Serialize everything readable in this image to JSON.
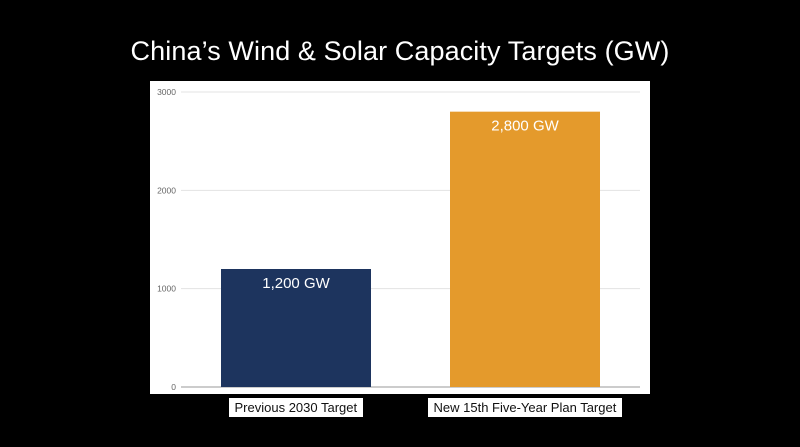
{
  "page": {
    "title": "China’s Wind & Solar Capacity Targets (GW)"
  },
  "colors": {
    "background": "#000000",
    "plot_background": "#ffffff",
    "gridline": "#e3e3e3",
    "axis_text": "#666666"
  },
  "chart_data": {
    "type": "bar",
    "title": "China’s Wind & Solar Capacity Targets (GW)",
    "categories": [
      "Previous 2030 Target",
      "New 15th Five-Year Plan Target"
    ],
    "values": [
      1200,
      2800
    ],
    "data_labels": [
      "1,200 GW",
      "2,800 GW"
    ],
    "bar_colors": [
      "#1d345e",
      "#e49a2c"
    ],
    "xlabel": "",
    "ylabel": "",
    "ylim": [
      0,
      3000
    ],
    "yticks": [
      0,
      1000,
      2000,
      3000
    ],
    "ytick_labels": [
      "0",
      "1000",
      "2000",
      "3000"
    ],
    "grid": true,
    "legend": "none"
  }
}
